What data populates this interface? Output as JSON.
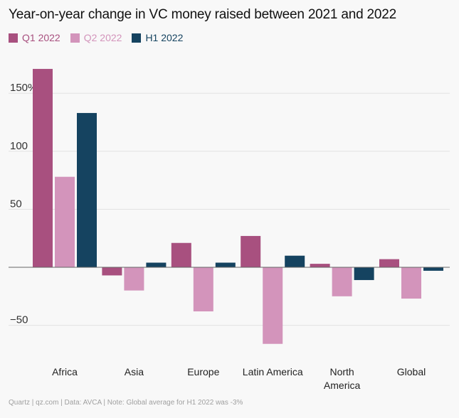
{
  "chart_data": {
    "type": "bar",
    "title": "Year-on-year change in VC money raised between 2021 and 2022",
    "categories": [
      "Africa",
      "Asia",
      "Europe",
      "Latin America",
      "North America",
      "Global"
    ],
    "category_lines": [
      [
        "Africa"
      ],
      [
        "Asia"
      ],
      [
        "Europe"
      ],
      [
        "Latin America"
      ],
      [
        "North",
        "America"
      ],
      [
        "Global"
      ]
    ],
    "series": [
      {
        "name": "Q1 2022",
        "color": "#a8507f",
        "values": [
          171,
          -7,
          21,
          27,
          3,
          7
        ]
      },
      {
        "name": "Q2 2022",
        "color": "#d394bb",
        "values": [
          78,
          -20,
          -38,
          -66,
          -25,
          -27
        ]
      },
      {
        "name": "H1 2022",
        "color": "#154360",
        "values": [
          133,
          4,
          4,
          10,
          -11,
          -3
        ]
      }
    ],
    "yticks": [
      {
        "value": 150,
        "label": "150%"
      },
      {
        "value": 100,
        "label": "100"
      },
      {
        "value": 50,
        "label": "50"
      },
      {
        "value": -50,
        "label": "−50"
      }
    ],
    "ylim": [
      -70,
      180
    ],
    "xlabel": "",
    "ylabel": "",
    "grid": true
  },
  "footer": "Quartz | qz.com | Data: AVCA | Note: Global average for H1 2022 was -3%"
}
